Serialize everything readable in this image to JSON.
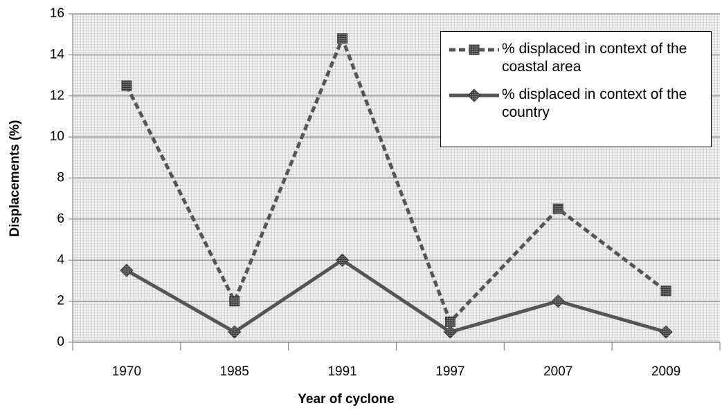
{
  "chart_data": {
    "type": "line",
    "xlabel": "Year of cyclone",
    "ylabel": "Displacements (%)",
    "categories": [
      "1970",
      "1985",
      "1991",
      "1997",
      "2007",
      "2009"
    ],
    "series": [
      {
        "name": "% displaced in context of the coastal area",
        "color": "#555555",
        "marker": "square",
        "dashed": true,
        "values": [
          12.5,
          2,
          14.8,
          1,
          6.5,
          2.5
        ]
      },
      {
        "name": "% displaced in context of the country",
        "color": "#555555",
        "marker": "diamond",
        "dashed": false,
        "values": [
          3.5,
          0.5,
          4,
          0.5,
          2,
          0.5
        ]
      }
    ],
    "ylim": [
      0,
      16
    ],
    "yticks": [
      0,
      2,
      4,
      6,
      8,
      10,
      12,
      14,
      16
    ],
    "grid": true,
    "legend": "upper right"
  }
}
